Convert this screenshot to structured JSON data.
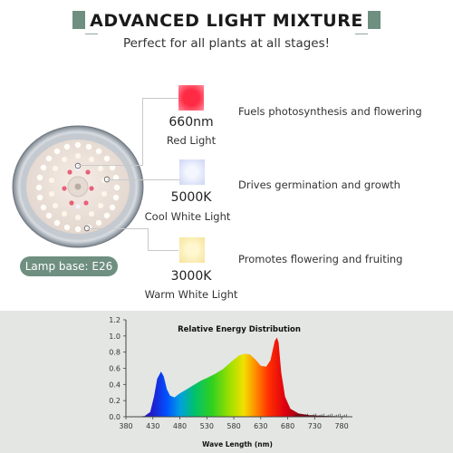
{
  "header": {
    "title": "ADVANCED LIGHT MIXTURE",
    "subtitle": "Perfect for all plants at all stages!",
    "accent_color": "#6f8f80"
  },
  "lamp": {
    "base_label": "Lamp base: E26"
  },
  "light_types": [
    {
      "value": "660nm",
      "name": "Red Light",
      "description": "Fuels photosynthesis and flowering",
      "color": "#ff3048"
    },
    {
      "value": "5000K",
      "name": "Cool White Light",
      "description": "Drives germination and growth",
      "color": "#dfe4f8"
    },
    {
      "value": "3000K",
      "name": "Warm White Light",
      "description": "Promotes flowering and fruiting",
      "color": "#fcefb8"
    }
  ],
  "chart_data": {
    "type": "area",
    "title": "Relative Energy Distribution",
    "xlabel": "Wave Length  (nm)",
    "ylabel": "",
    "xlim": [
      380,
      800
    ],
    "ylim": [
      0,
      1.2
    ],
    "xticks": [
      "380",
      "430",
      "480",
      "530",
      "580",
      "630",
      "680",
      "730",
      "780"
    ],
    "yticks": [
      "0.0",
      "0.2",
      "0.4",
      "0.6",
      "0.8",
      "1.0",
      "1.2"
    ],
    "x": [
      380,
      400,
      415,
      425,
      432,
      438,
      445,
      450,
      456,
      462,
      470,
      480,
      490,
      500,
      510,
      520,
      530,
      545,
      560,
      575,
      590,
      600,
      610,
      620,
      630,
      640,
      648,
      652,
      656,
      660,
      663,
      668,
      675,
      685,
      700,
      720,
      750,
      800
    ],
    "series": [
      {
        "values": [
          0,
          0,
          0.01,
          0.06,
          0.25,
          0.47,
          0.56,
          0.5,
          0.34,
          0.26,
          0.24,
          0.29,
          0.33,
          0.37,
          0.41,
          0.45,
          0.48,
          0.53,
          0.59,
          0.68,
          0.76,
          0.78,
          0.77,
          0.71,
          0.63,
          0.62,
          0.7,
          0.82,
          0.94,
          0.98,
          0.92,
          0.55,
          0.25,
          0.1,
          0.04,
          0.02,
          0.01,
          0
        ]
      }
    ]
  }
}
